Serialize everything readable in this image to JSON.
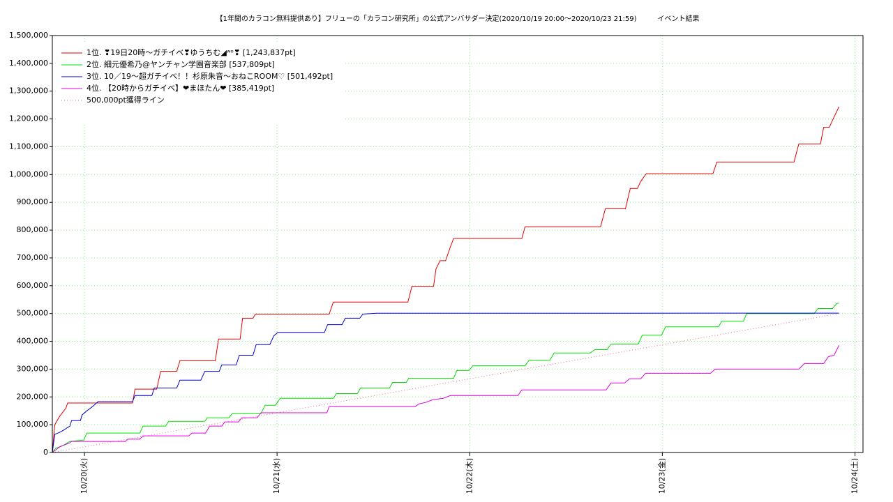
{
  "chart_data": {
    "type": "line",
    "title": "【1年間のカラコン無料提供あり】フリューの「カラコン研究所」の公式アンバサダー決定(2020/10/19 20:00〜2020/10/23 21:59)　　　イベント結果",
    "xlim": [
      20,
      121
    ],
    "xticks": [
      {
        "value": 24,
        "label": "10/20(火)"
      },
      {
        "value": 48,
        "label": "10/21(水)"
      },
      {
        "value": 72,
        "label": "10/22(木)"
      },
      {
        "value": 96,
        "label": "10/23(金)"
      },
      {
        "value": 120,
        "label": "10/24(土)"
      }
    ],
    "ylim": [
      0,
      1500000
    ],
    "yticks": [
      0,
      {
        "value": 100000,
        "label": "100,000"
      },
      {
        "value": 200000,
        "label": "200,000"
      },
      {
        "value": 300000,
        "label": "300,000"
      },
      {
        "value": 400000,
        "label": "400,000"
      },
      {
        "value": 500000,
        "label": "500,000"
      },
      {
        "value": 600000,
        "label": "600,000"
      },
      {
        "value": 700000,
        "label": "700,000"
      },
      {
        "value": 800000,
        "label": "800,000"
      },
      {
        "value": 900000,
        "label": "900,000"
      },
      {
        "value": 1000000,
        "label": "1,000,000"
      },
      {
        "value": 1100000,
        "label": "1,100,000"
      },
      {
        "value": 1200000,
        "label": "1,200,000"
      },
      {
        "value": 1300000,
        "label": "1,300,000"
      },
      {
        "value": 1400000,
        "label": "1,400,000"
      },
      {
        "value": 1500000,
        "label": "1,500,000"
      }
    ],
    "grid": true,
    "legend": "upper-left",
    "series": [
      {
        "name": "1位. ❣19日20時〜ガチイベ❣ゆうちむ◢ʷᵒ❣ [1,243,837pt]",
        "color": "#e00000",
        "style": "solid",
        "x": [
          20.0,
          20.3,
          20.9,
          21.7,
          21.9,
          30.0,
          30.3,
          33.0,
          33.5,
          35.5,
          35.9,
          40.3,
          40.7,
          43.4,
          43.7,
          45.0,
          45.3,
          54.5,
          55.0,
          64.3,
          64.8,
          67.5,
          67.8,
          68.3,
          69.0,
          69.6,
          70.0,
          78.5,
          78.9,
          88.3,
          88.9,
          91.4,
          92.0,
          92.9,
          93.3,
          94.0,
          102.3,
          102.8,
          112.4,
          113.0,
          115.7,
          116.1,
          116.8,
          117.2,
          118.0
        ],
        "values": [
          0,
          100000,
          130000,
          160000,
          178000,
          178000,
          228000,
          228000,
          292000,
          292000,
          330000,
          330000,
          408000,
          408000,
          483000,
          483000,
          498000,
          498000,
          541000,
          541000,
          598000,
          598000,
          660000,
          690000,
          690000,
          740000,
          770000,
          770000,
          812000,
          812000,
          877000,
          877000,
          950000,
          950000,
          975000,
          1003000,
          1003000,
          1045000,
          1045000,
          1110000,
          1110000,
          1170000,
          1170000,
          1195000,
          1243837
        ]
      },
      {
        "name": "2位. 細元優希乃@ヤンチャン学園音楽部 [537,809pt]",
        "color": "#00e000",
        "style": "solid",
        "x": [
          20.0,
          20.4,
          21.3,
          22.2,
          23.9,
          24.3,
          30.9,
          31.3,
          34.1,
          34.5,
          39.0,
          39.3,
          42.0,
          42.4,
          46.0,
          46.5,
          47.8,
          48.4,
          55.0,
          55.4,
          58.0,
          58.4,
          62.0,
          62.4,
          64.1,
          64.4,
          70.0,
          70.4,
          71.9,
          72.4,
          78.9,
          79.4,
          82.0,
          82.5,
          87.0,
          87.6,
          89.1,
          89.6,
          93.0,
          93.5,
          95.9,
          96.4,
          103.0,
          103.4,
          106.1,
          106.5,
          114.9,
          115.4,
          117.2,
          117.7,
          118.0
        ],
        "values": [
          0,
          15000,
          25000,
          40000,
          45000,
          70000,
          70000,
          95000,
          95000,
          112000,
          112000,
          125000,
          125000,
          140000,
          140000,
          170000,
          170000,
          195000,
          195000,
          212000,
          212000,
          232000,
          232000,
          252000,
          252000,
          267000,
          267000,
          295000,
          295000,
          312000,
          312000,
          332000,
          332000,
          358000,
          358000,
          370000,
          370000,
          390000,
          390000,
          422000,
          422000,
          452000,
          452000,
          472000,
          472000,
          500000,
          500000,
          518000,
          518000,
          535000,
          537809
        ]
      },
      {
        "name": "3位. 10／19〜超ガチイベ！！杉原朱音〜おねこROOM♡ [501,492pt]",
        "color": "#0000d0",
        "style": "solid",
        "x": [
          20.0,
          20.3,
          21.1,
          22.2,
          22.4,
          23.5,
          23.7,
          24.3,
          25.0,
          25.7,
          30.0,
          30.3,
          32.4,
          32.7,
          35.5,
          35.9,
          38.5,
          39.0,
          40.8,
          41.1,
          42.9,
          43.3,
          45.0,
          45.4,
          47.1,
          47.6,
          48.1,
          53.9,
          54.3,
          56.1,
          56.5,
          58.3,
          58.7,
          60.4,
          118.0
        ],
        "values": [
          0,
          65000,
          75000,
          95000,
          115000,
          115000,
          135000,
          150000,
          165000,
          183000,
          183000,
          205000,
          205000,
          232000,
          232000,
          260000,
          260000,
          292000,
          292000,
          315000,
          315000,
          350000,
          350000,
          388000,
          388000,
          420000,
          432000,
          432000,
          460000,
          460000,
          483000,
          483000,
          498000,
          501000,
          501492
        ]
      },
      {
        "name": "4位. 【20時からガチイベ】❤まほたん❤ [385,419pt]",
        "color": "#e000e0",
        "style": "solid",
        "x": [
          20.0,
          20.9,
          22.2,
          22.4,
          29.1,
          29.4,
          30.9,
          31.3,
          37.0,
          37.4,
          39.1,
          39.6,
          41.1,
          41.5,
          43.2,
          43.6,
          45.5,
          46.0,
          54.2,
          54.5,
          65.2,
          65.7,
          66.5,
          67.4,
          68.7,
          69.6,
          78.0,
          78.5,
          89.0,
          89.6,
          91.3,
          91.9,
          93.3,
          93.9,
          102.0,
          102.6,
          113.0,
          113.7,
          116.1,
          116.7,
          117.4,
          118.0
        ],
        "values": [
          0,
          20000,
          35000,
          40000,
          40000,
          48000,
          48000,
          60000,
          60000,
          70000,
          70000,
          95000,
          95000,
          110000,
          110000,
          125000,
          125000,
          143000,
          143000,
          165000,
          165000,
          175000,
          180000,
          190000,
          195000,
          205000,
          205000,
          225000,
          225000,
          250000,
          250000,
          265000,
          265000,
          285000,
          285000,
          300000,
          300000,
          320000,
          320000,
          345000,
          350000,
          385419
        ]
      },
      {
        "name": "500,000pt獲得ライン",
        "color": "#e07090",
        "style": "dotted",
        "x": [
          20.0,
          118.0
        ],
        "values": [
          0,
          500000
        ]
      }
    ]
  }
}
